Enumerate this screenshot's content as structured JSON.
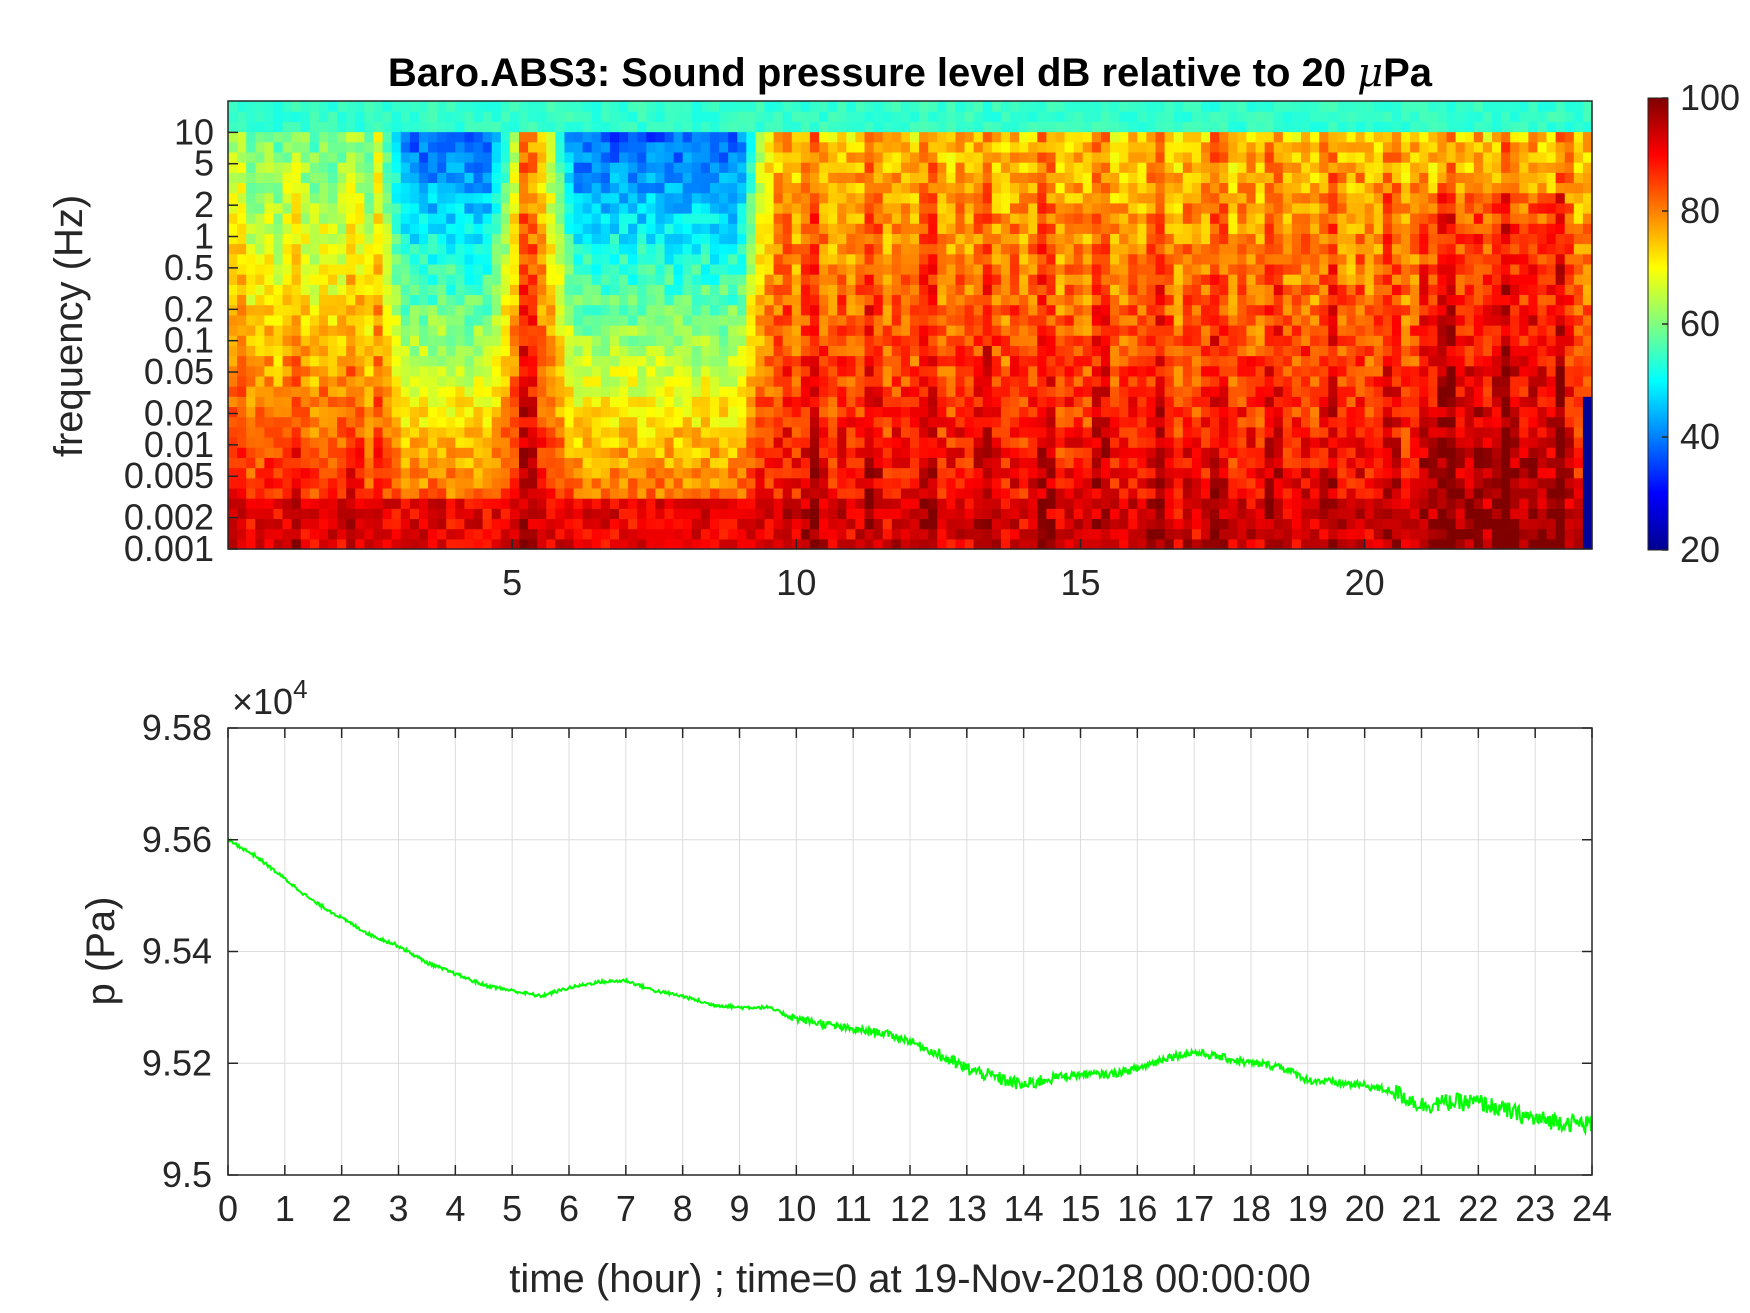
{
  "chart_data": [
    {
      "type": "heatmap",
      "title_prefix": "Baro.ABS3: Sound pressure level dB relative to 20 ",
      "title_mu": "μ",
      "title_suffix": "Pa",
      "ylabel": "frequency (Hz)",
      "y_scale": "log",
      "xlim": [
        0,
        24
      ],
      "ylim": [
        0.001,
        20
      ],
      "x_ticks": [
        "5",
        "10",
        "15",
        "20"
      ],
      "y_ticks": [
        "10",
        "5",
        "2",
        "1",
        "0.5",
        "0.2",
        "0.1",
        "0.05",
        "0.02",
        "0.01",
        "0.005",
        "0.002",
        "0.001"
      ],
      "colormap": "jet",
      "color_limits": [
        20,
        100
      ],
      "colorbar_ticks": [
        "20",
        "40",
        "60",
        "80",
        "100"
      ],
      "quiet_periods_hours": [
        [
          2.5,
          5.2
        ],
        [
          5.5,
          9.6
        ]
      ],
      "loud_periods_hours": [
        [
          9.6,
          24
        ]
      ]
    },
    {
      "type": "line",
      "exponent_label_times": "×",
      "exponent_label_base": "10",
      "exponent_label_power": "4",
      "ylabel": "p (Pa)",
      "xlabel": "time (hour) ; time=0 at 19-Nov-2018 00:00:00",
      "xlim": [
        0,
        24
      ],
      "ylim": [
        9.5,
        9.58
      ],
      "y_scale_factor": 10000,
      "x_ticks": [
        "0",
        "1",
        "2",
        "3",
        "4",
        "5",
        "6",
        "7",
        "8",
        "9",
        "10",
        "11",
        "12",
        "13",
        "14",
        "15",
        "16",
        "17",
        "18",
        "19",
        "20",
        "21",
        "22",
        "23",
        "24"
      ],
      "y_ticks": [
        "9.5",
        "9.52",
        "9.54",
        "9.56",
        "9.58"
      ],
      "grid": true,
      "series": [
        {
          "color": "#00ff00",
          "x": [
            0,
            0.5,
            1,
            1.5,
            2,
            2.5,
            3,
            3.5,
            4,
            4.5,
            5,
            5.5,
            6,
            6.5,
            7,
            7.5,
            8,
            8.5,
            9,
            9.5,
            10,
            10.5,
            11,
            11.5,
            12,
            12.5,
            13,
            13.5,
            14,
            14.5,
            15,
            15.5,
            16,
            16.5,
            17,
            17.5,
            18,
            18.5,
            19,
            19.5,
            20,
            20.5,
            21,
            21.5,
            22,
            22.5,
            23,
            23.5,
            24
          ],
          "y": [
            9.56,
            9.557,
            9.553,
            9.549,
            9.546,
            9.543,
            9.541,
            9.538,
            9.536,
            9.534,
            9.533,
            9.532,
            9.5335,
            9.5345,
            9.5348,
            9.533,
            9.532,
            9.5305,
            9.53,
            9.53,
            9.528,
            9.527,
            9.526,
            9.5255,
            9.524,
            9.5215,
            9.519,
            9.5175,
            9.516,
            9.5175,
            9.518,
            9.518,
            9.519,
            9.521,
            9.522,
            9.521,
            9.52,
            9.5195,
            9.517,
            9.5165,
            9.516,
            9.515,
            9.5125,
            9.513,
            9.513,
            9.5115,
            9.51,
            9.5095,
            9.509
          ]
        }
      ]
    }
  ]
}
